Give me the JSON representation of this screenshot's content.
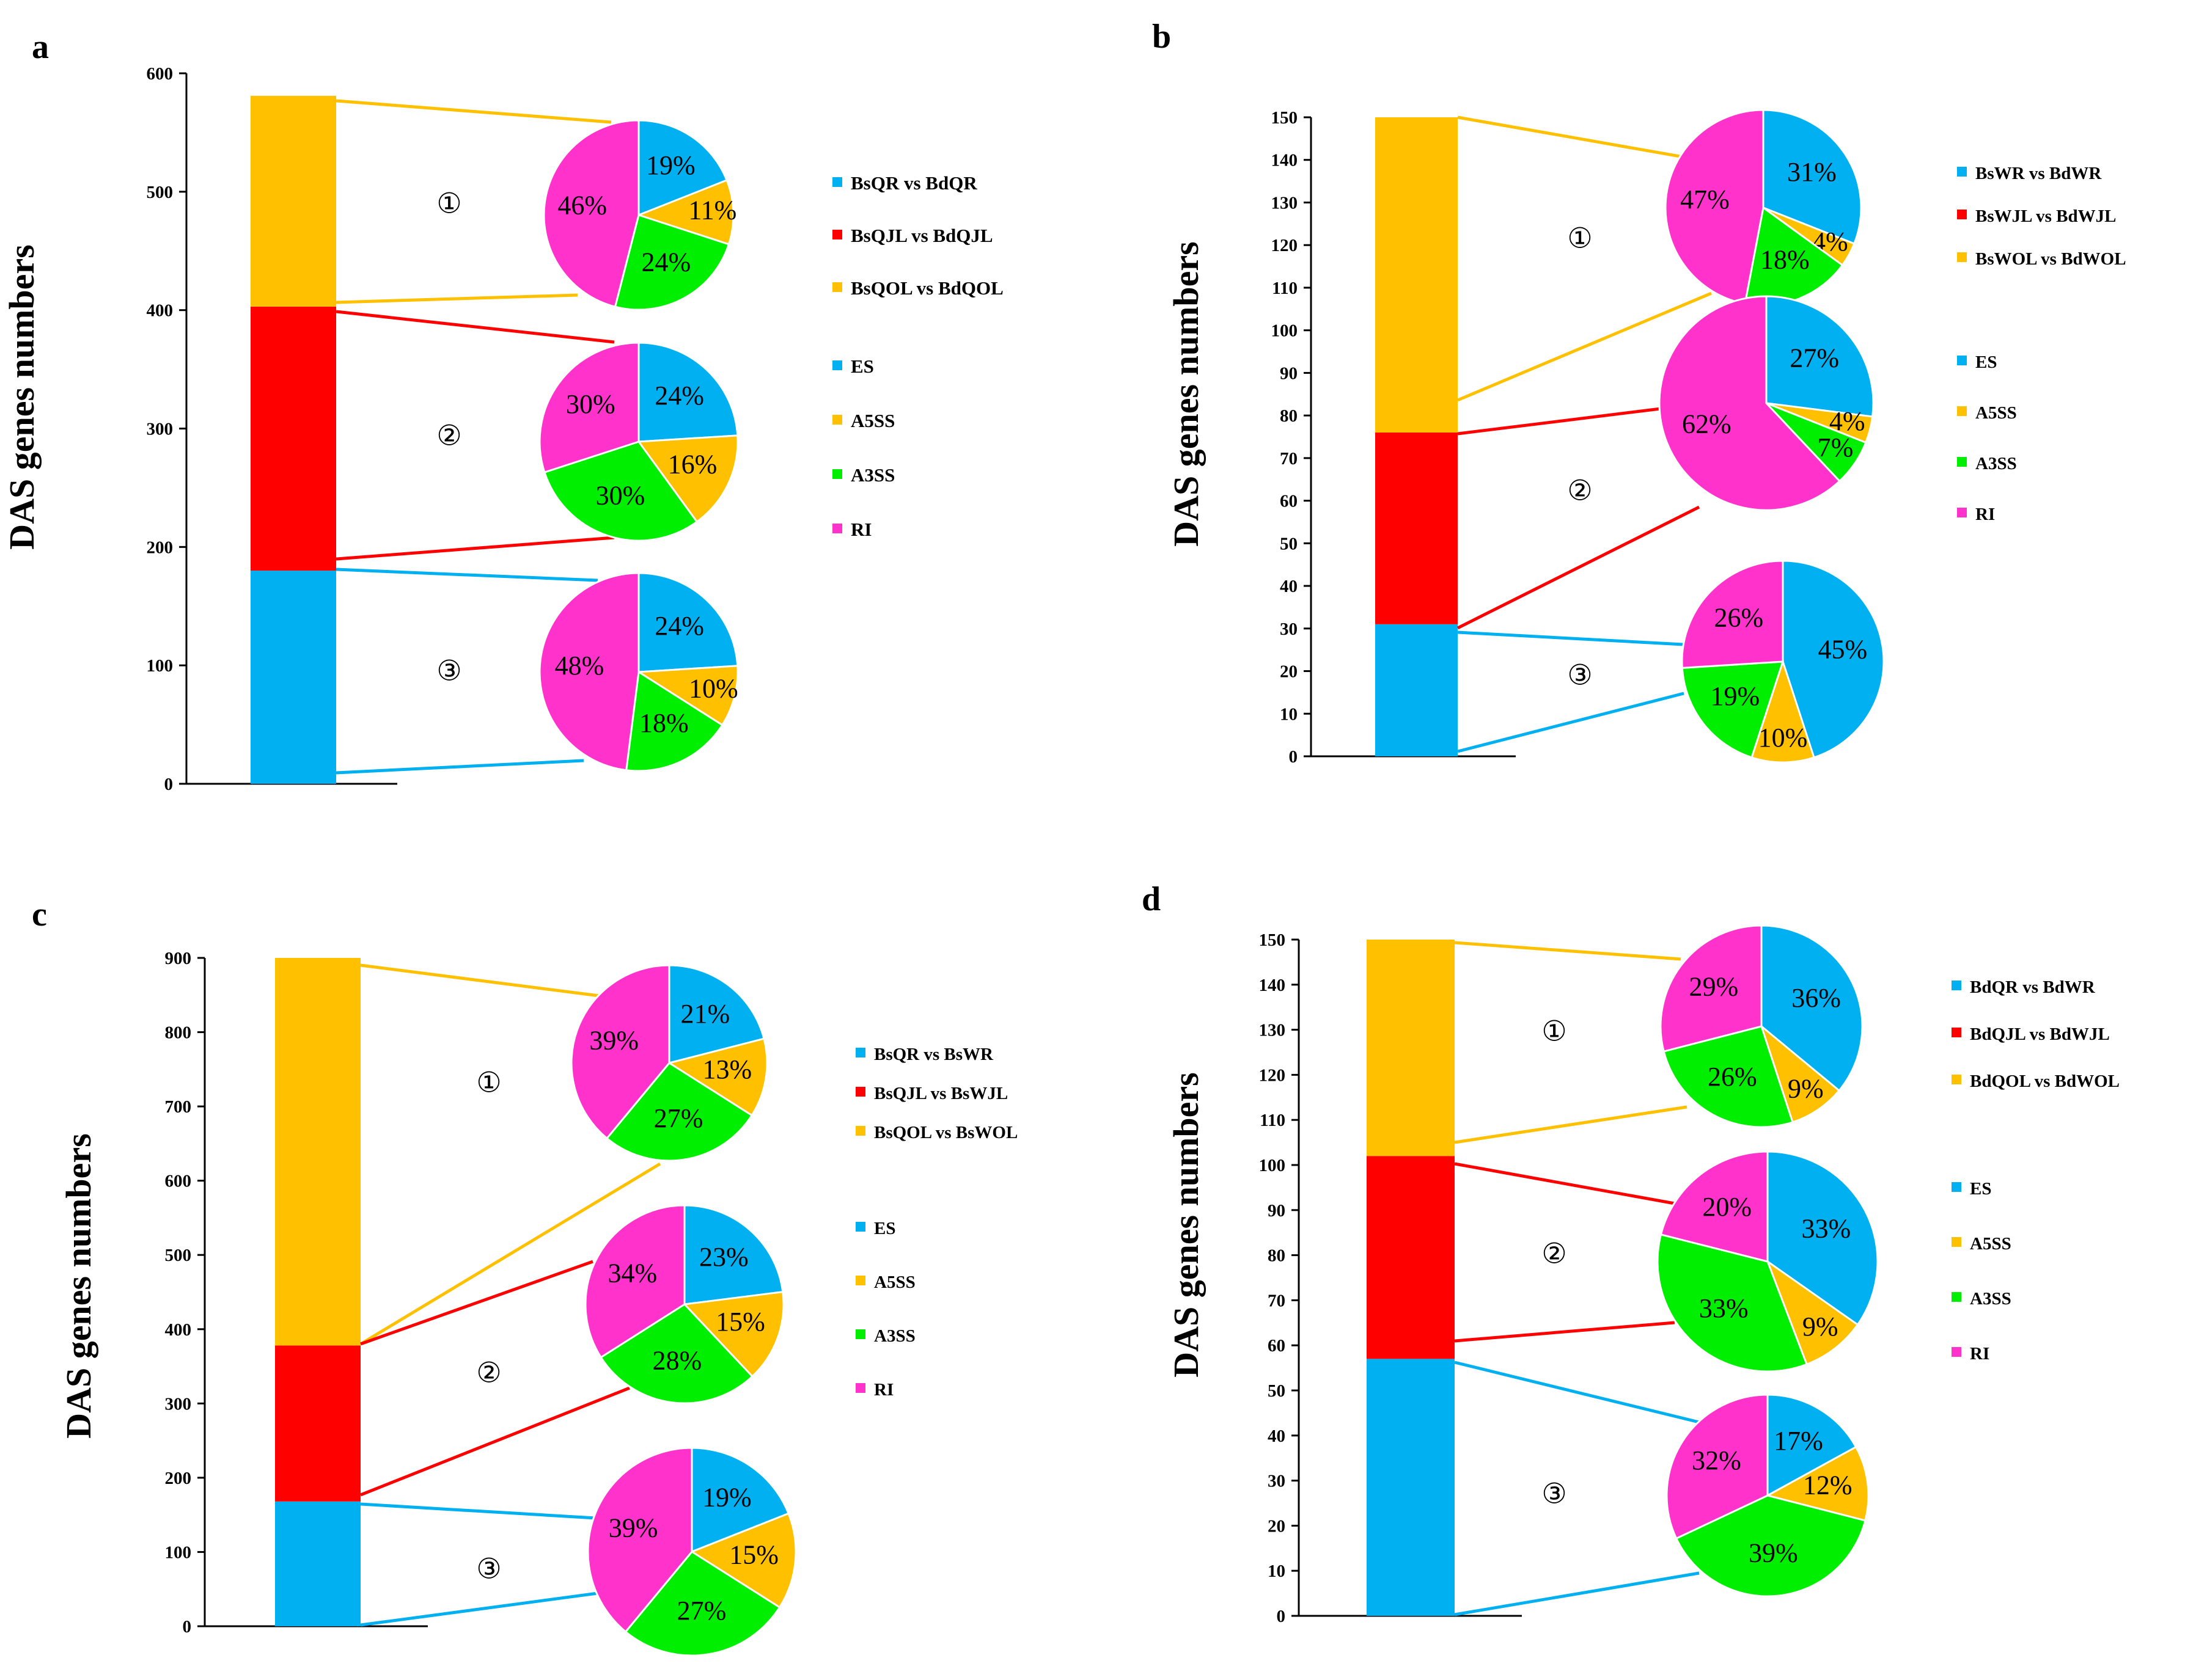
{
  "colors": {
    "es": "#00B0F0",
    "a5ss": "#FFC000",
    "a3ss": "#00EE00",
    "ri": "#FF33CC",
    "bar_top": "#FFC000",
    "bar_mid": "#FF0000",
    "bar_bottom": "#00B0F0",
    "axis": "#000000"
  },
  "event_legend": [
    "ES",
    "A5SS",
    "A3SS",
    "RI"
  ],
  "chart_data": [
    {
      "type": "bar+pie",
      "panel": "a",
      "ylabel": "DAS genes numbers",
      "ylim": [
        0,
        600
      ],
      "yticks": [
        0,
        100,
        200,
        300,
        400,
        500,
        600
      ],
      "stack": [
        180,
        223,
        178
      ],
      "comparisons": [
        "BsQR vs BdQR",
        "BsQJL vs BdQJL",
        "BsQOL vs BdQOL"
      ],
      "circle_labels": [
        "①",
        "②",
        "③"
      ],
      "pies": [
        {
          "es": 19,
          "a5ss": 11,
          "a3ss": 24,
          "ri": 46
        },
        {
          "es": 24,
          "a5ss": 16,
          "a3ss": 30,
          "ri": 30
        },
        {
          "es": 24,
          "a5ss": 10,
          "a3ss": 18,
          "ri": 48
        }
      ]
    },
    {
      "type": "bar+pie",
      "panel": "b",
      "ylabel": "DAS genes numbers",
      "ylim": [
        0,
        150
      ],
      "yticks": [
        0,
        10,
        20,
        30,
        40,
        50,
        60,
        70,
        80,
        90,
        100,
        110,
        120,
        130,
        140,
        150
      ],
      "stack": [
        31,
        45,
        74
      ],
      "comparisons": [
        "BsWR vs BdWR",
        "BsWJL vs BdWJL",
        "BsWOL vs BdWOL"
      ],
      "circle_labels": [
        "①",
        "②",
        "③"
      ],
      "pies": [
        {
          "es": 31,
          "a5ss": 4,
          "a3ss": 18,
          "ri": 47
        },
        {
          "es": 27,
          "a5ss": 4,
          "a3ss": 7,
          "ri": 62
        },
        {
          "es": 45,
          "a5ss": 10,
          "a3ss": 19,
          "ri": 26
        }
      ]
    },
    {
      "type": "bar+pie",
      "panel": "c",
      "ylabel": "DAS genes numbers",
      "ylim": [
        0,
        900
      ],
      "yticks": [
        0,
        100,
        200,
        300,
        400,
        500,
        600,
        700,
        800,
        900
      ],
      "stack": [
        168,
        210,
        522
      ],
      "comparisons": [
        "BsQR vs BsWR",
        "BsQJL vs BsWJL",
        "BsQOL vs BsWOL"
      ],
      "circle_labels": [
        "①",
        "②",
        "③"
      ],
      "pies": [
        {
          "es": 21,
          "a5ss": 13,
          "a3ss": 27,
          "ri": 39
        },
        {
          "es": 23,
          "a5ss": 15,
          "a3ss": 28,
          "ri": 34
        },
        {
          "es": 19,
          "a5ss": 15,
          "a3ss": 27,
          "ri": 39
        }
      ]
    },
    {
      "type": "bar+pie",
      "panel": "d",
      "ylabel": "DAS genes numbers",
      "ylim": [
        0,
        150
      ],
      "yticks": [
        0,
        10,
        20,
        30,
        40,
        50,
        60,
        70,
        80,
        90,
        100,
        110,
        120,
        130,
        140,
        150
      ],
      "stack": [
        57,
        45,
        48
      ],
      "comparisons": [
        "BdQR vs BdWR",
        "BdQJL vs BdWJL",
        "BdQOL vs BdWOL"
      ],
      "circle_labels": [
        "①",
        "②",
        "③"
      ],
      "pies": [
        {
          "es": 36,
          "a5ss": 9,
          "a3ss": 26,
          "ri": 29
        },
        {
          "es": 33,
          "a5ss": 9,
          "a3ss": 33,
          "ri": 20
        },
        {
          "es": 17,
          "a5ss": 12,
          "a3ss": 39,
          "ri": 32
        }
      ]
    }
  ]
}
